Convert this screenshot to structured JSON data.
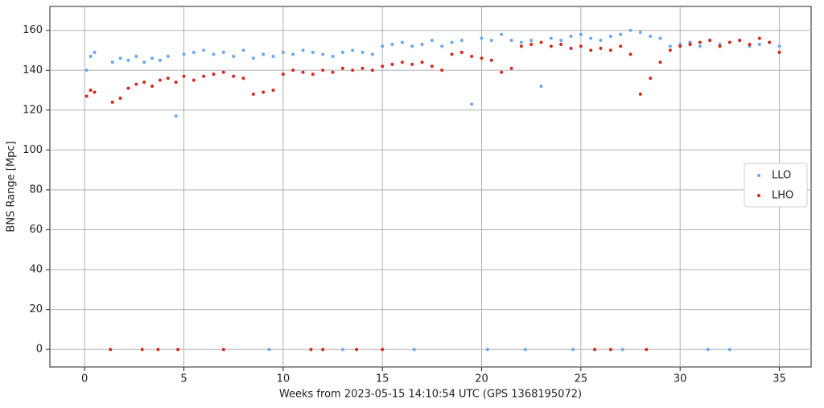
{
  "chart_data": {
    "type": "scatter",
    "xlabel": "Weeks from 2023-05-15 14:10:54 UTC (GPS 1368195072)",
    "ylabel": "BNS Range [Mpc]",
    "xlim": [
      -1.75,
      36.6
    ],
    "ylim": [
      -8.8,
      172
    ],
    "xticks": [
      0,
      5,
      10,
      15,
      20,
      25,
      30,
      35
    ],
    "yticks": [
      0,
      20,
      40,
      60,
      80,
      100,
      120,
      140,
      160
    ],
    "grid": true,
    "legend": "right",
    "series": [
      {
        "name": "LLO",
        "color": "#6aa8ee",
        "x": [
          0.1,
          0.3,
          0.5,
          1.4,
          1.8,
          2.2,
          2.6,
          3.0,
          3.4,
          3.8,
          4.2,
          4.6,
          5.0,
          5.5,
          6.0,
          6.5,
          7.0,
          7.5,
          8.0,
          8.5,
          9.0,
          9.5,
          10.0,
          10.5,
          11.0,
          11.5,
          12.0,
          12.5,
          13.0,
          13.5,
          14.0,
          14.5,
          15.0,
          15.5,
          16.0,
          16.5,
          17.0,
          17.5,
          18.0,
          18.5,
          19.0,
          19.5,
          20.0,
          20.5,
          21.0,
          21.5,
          22.0,
          22.5,
          23.0,
          23.5,
          24.0,
          24.5,
          25.0,
          25.5,
          26.0,
          26.5,
          27.0,
          27.5,
          28.0,
          28.5,
          29.0,
          29.5,
          30.0,
          30.5,
          31.0,
          31.5,
          32.0,
          32.5,
          33.0,
          33.5,
          34.0,
          34.5,
          35.0,
          9.3,
          13.0,
          16.6,
          20.3,
          22.2,
          24.6,
          27.1,
          31.4,
          32.5
        ],
        "values": [
          140,
          147,
          149,
          144,
          146,
          145,
          147,
          144,
          146,
          145,
          147,
          117,
          148,
          149,
          150,
          148,
          149,
          147,
          150,
          146,
          148,
          147,
          149,
          148,
          150,
          149,
          148,
          147,
          149,
          150,
          149,
          148,
          152,
          153,
          154,
          152,
          153,
          155,
          152,
          154,
          155,
          123,
          156,
          155,
          158,
          155,
          154,
          155,
          132,
          156,
          155,
          157,
          158,
          156,
          155,
          157,
          158,
          160,
          159,
          157,
          156,
          152,
          153,
          154,
          152,
          155,
          153,
          154,
          155,
          152,
          153,
          154,
          152,
          0,
          0,
          0,
          0,
          0,
          0,
          0,
          0,
          0
        ]
      },
      {
        "name": "LHO",
        "color": "#d42a1e",
        "x": [
          0.1,
          0.3,
          0.5,
          1.4,
          1.8,
          2.2,
          2.6,
          3.0,
          3.4,
          3.8,
          4.2,
          4.6,
          5.0,
          5.5,
          6.0,
          6.5,
          7.0,
          7.5,
          8.0,
          8.5,
          9.0,
          9.5,
          10.0,
          10.5,
          11.0,
          11.5,
          12.0,
          12.5,
          13.0,
          13.5,
          14.0,
          14.5,
          15.0,
          15.5,
          16.0,
          16.5,
          17.0,
          17.5,
          18.0,
          18.5,
          19.0,
          19.5,
          20.0,
          20.5,
          21.0,
          21.5,
          22.0,
          22.5,
          23.0,
          23.5,
          24.0,
          24.5,
          25.0,
          25.5,
          26.0,
          26.5,
          27.0,
          27.5,
          28.0,
          28.5,
          29.0,
          29.5,
          30.0,
          30.5,
          31.0,
          31.5,
          32.0,
          32.5,
          33.0,
          33.5,
          34.0,
          34.5,
          35.0,
          1.3,
          2.9,
          3.7,
          4.7,
          7.0,
          11.4,
          12.0,
          13.7,
          15.0,
          25.7,
          26.5,
          28.3
        ],
        "values": [
          127,
          130,
          129,
          124,
          126,
          131,
          133,
          134,
          132,
          135,
          136,
          134,
          137,
          135,
          137,
          138,
          139,
          137,
          136,
          128,
          129,
          130,
          138,
          140,
          139,
          138,
          140,
          139,
          141,
          140,
          141,
          140,
          142,
          143,
          144,
          143,
          144,
          142,
          140,
          148,
          149,
          147,
          146,
          145,
          139,
          141,
          152,
          153,
          154,
          152,
          153,
          151,
          152,
          150,
          151,
          150,
          152,
          148,
          128,
          136,
          144,
          150,
          152,
          153,
          154,
          155,
          152,
          154,
          155,
          153,
          156,
          154,
          149,
          0,
          0,
          0,
          0,
          0,
          0,
          0,
          0,
          0,
          0,
          0,
          0
        ]
      }
    ]
  }
}
